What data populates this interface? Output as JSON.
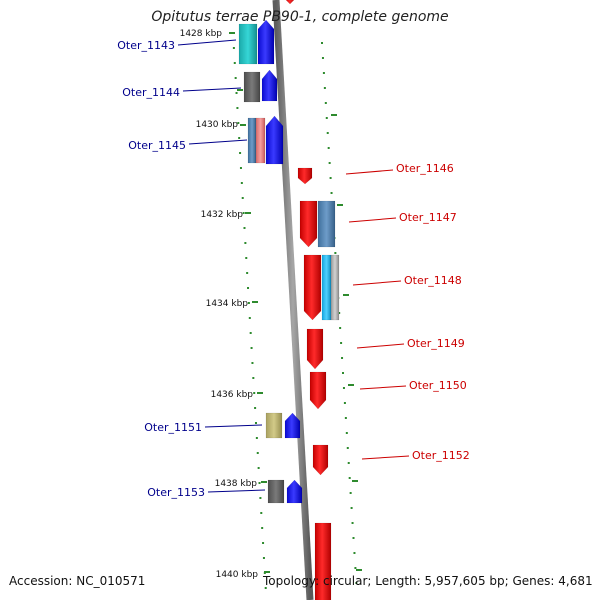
{
  "title": "Opitutus terrae PB90-1, complete genome",
  "footer": {
    "accession": "Accession: NC_010571",
    "stats": "Topology: circular; Length: 5,957,605 bp; Genes: 4,681"
  },
  "colors": {
    "backbone": "#7a7a7a",
    "tick": "#2e8b2e",
    "forward_gene": "#1414ff",
    "reverse_gene": "#ee0000",
    "left_label": "#00008b",
    "right_label": "#cc0000",
    "scale_label": "#111111"
  },
  "scale_labels": [
    "1428 kbp",
    "1430 kbp",
    "1432 kbp",
    "1434 kbp",
    "1436 kbp",
    "1438 kbp",
    "1440 kbp"
  ],
  "gene_labels_left": [
    "Oter_1143",
    "Oter_1144",
    "Oter_1145",
    "Oter_1151",
    "Oter_1153"
  ],
  "gene_labels_right": [
    "Oter_1146",
    "Oter_1147",
    "Oter_1148",
    "Oter_1149",
    "Oter_1150",
    "Oter_1152"
  ]
}
